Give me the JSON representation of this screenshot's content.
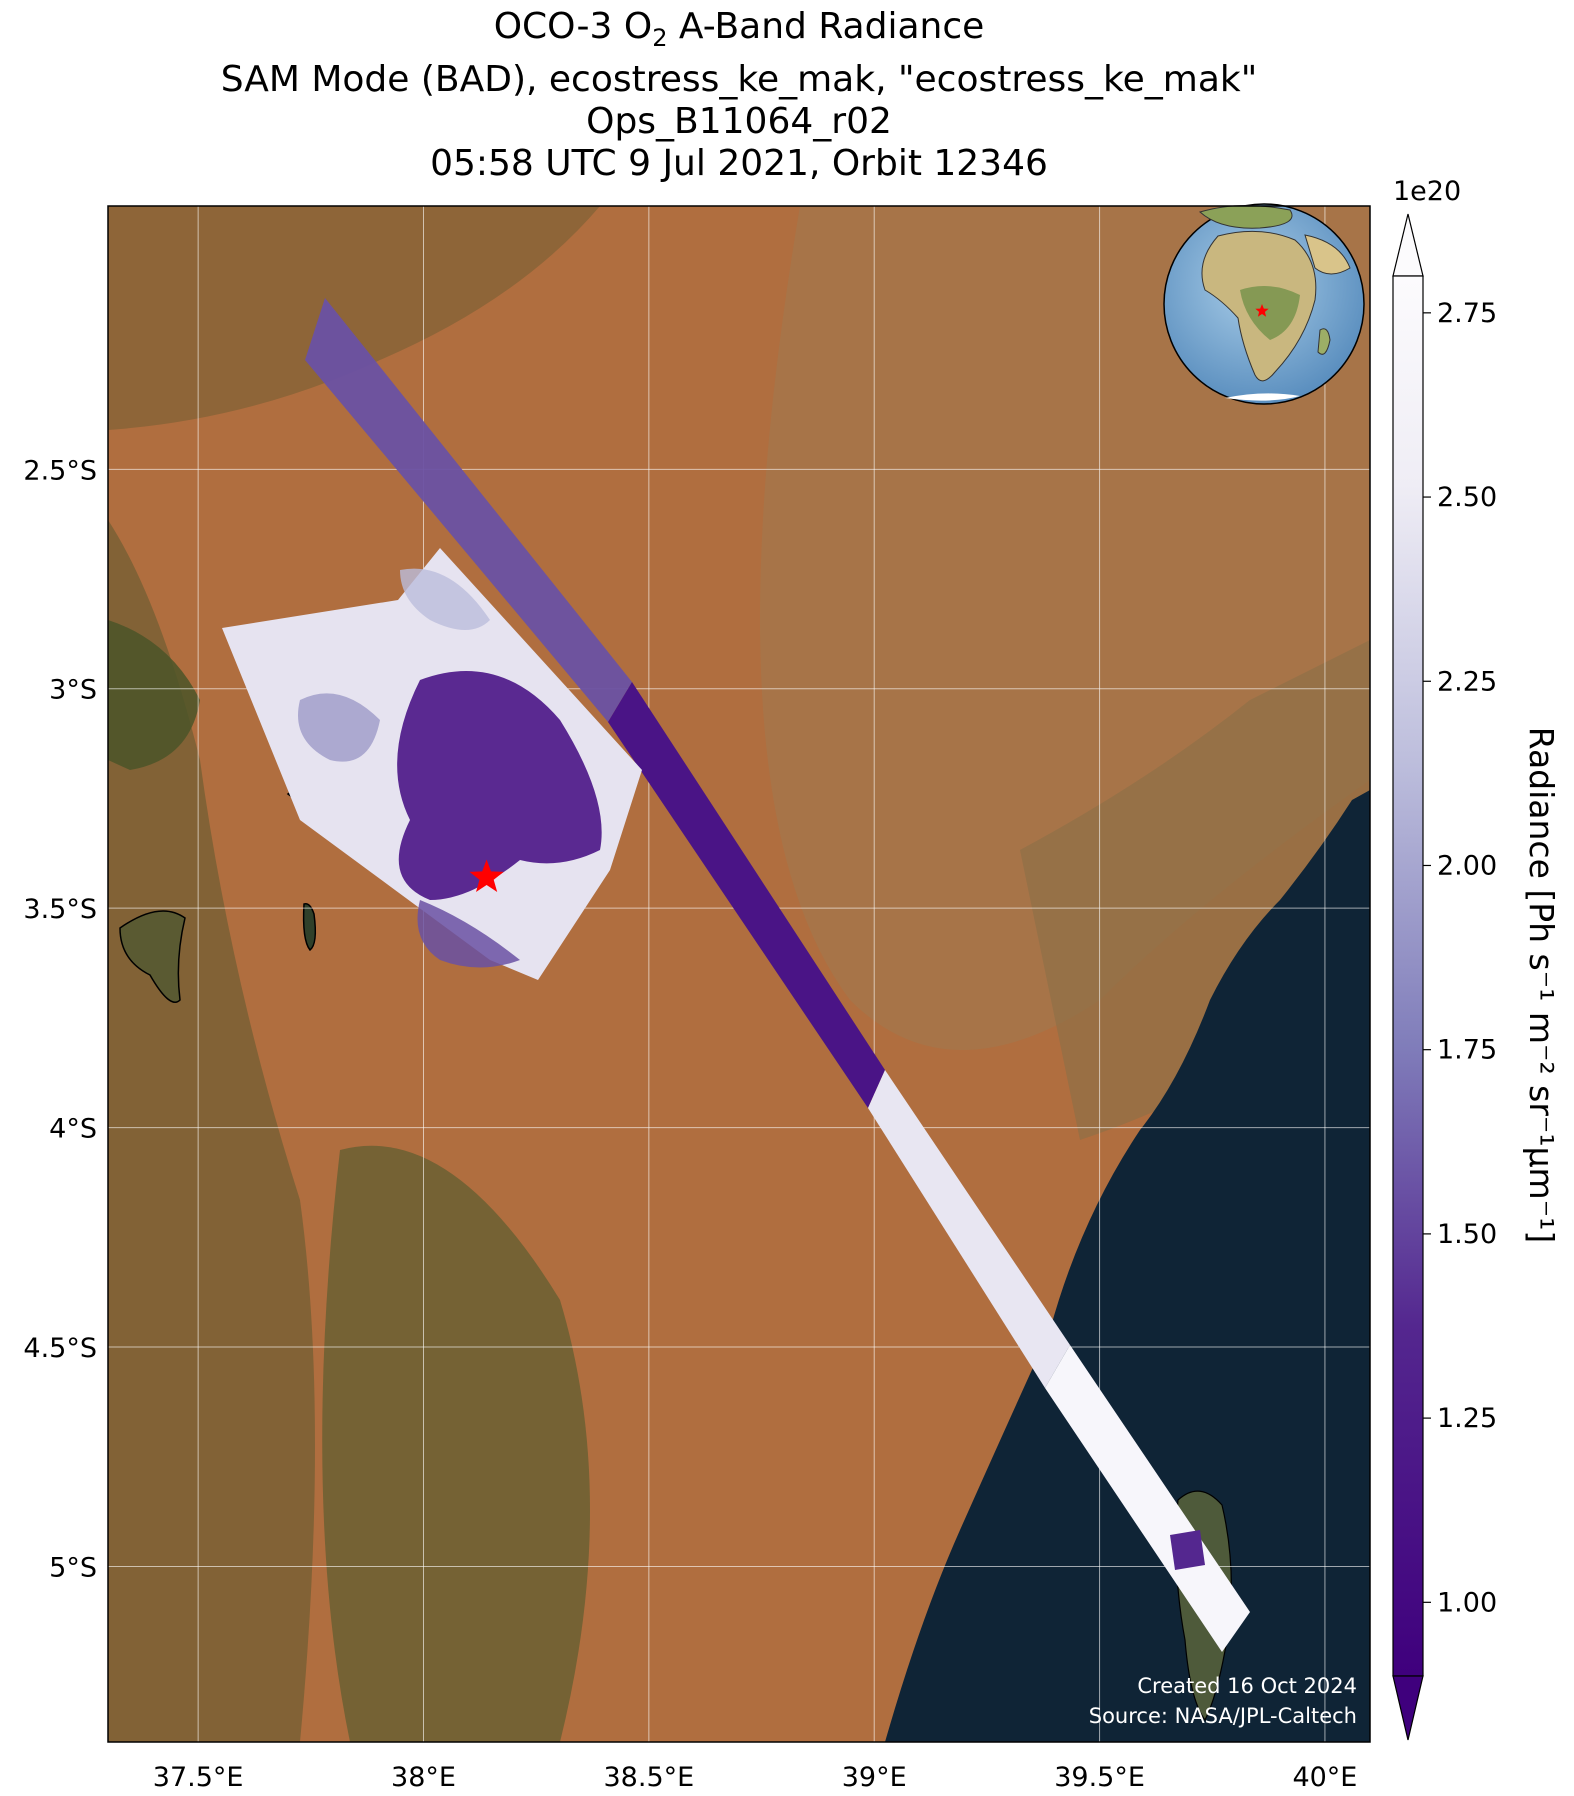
{
  "title": {
    "line1_prefix": "OCO-3 O",
    "line1_sub": "2",
    "line1_suffix": " A-Band Radiance",
    "line2": "SAM Mode (BAD), ecostress_ke_mak, \"ecostress_ke_mak\"",
    "line3": "Ops_B11064_r02",
    "line4": "05:58 UTC 9 Jul 2021, Orbit 12346"
  },
  "map": {
    "lon_range": [
      37.3,
      40.1
    ],
    "lat_range": [
      -5.4,
      -1.9
    ],
    "lon_ticks": [
      37.5,
      38.0,
      38.5,
      39.0,
      39.5,
      40.0
    ],
    "lon_tick_labels": [
      "37.5°E",
      "38°E",
      "38.5°E",
      "39°E",
      "39.5°E",
      "40°E"
    ],
    "lat_ticks": [
      -2.5,
      -3.0,
      -3.5,
      -4.0,
      -4.5,
      -5.0
    ],
    "lat_tick_labels": [
      "2.5°S",
      "3°S",
      "3.5°S",
      "4°S",
      "4.5°S",
      "5°S"
    ],
    "target_marker": {
      "lon": 38.14,
      "lat": -3.43,
      "symbol": "star",
      "color": "#ff0000"
    },
    "credit_line1": "Created 16 Oct 2024",
    "credit_line2": "Source: NASA/JPL-Caltech",
    "inset_globe": {
      "center_lon": 20,
      "center_lat": 5,
      "marker": {
        "lon": 38.1,
        "lat": -3.4
      }
    }
  },
  "colorbar": {
    "colormap": "Purples_r",
    "vmin": 0.9,
    "vmax": 2.8,
    "ticks": [
      1.0,
      1.25,
      1.5,
      1.75,
      2.0,
      2.25,
      2.5,
      2.75
    ],
    "tick_labels": [
      "1.00",
      "1.25",
      "1.50",
      "1.75",
      "2.00",
      "2.25",
      "2.50",
      "2.75"
    ],
    "exponent_label": "1e20",
    "label": "Radiance [Ph s⁻¹ m⁻² sr⁻¹μm⁻¹]",
    "extend": "both",
    "color_low": "#3f007d",
    "color_mid": "#8a82c0",
    "color_high": "#fcfbfd"
  },
  "colors": {
    "land": "#b36f3d",
    "land_green": "#4c5a2a",
    "ocean": "#0f2233",
    "grid": "#ffffff"
  }
}
